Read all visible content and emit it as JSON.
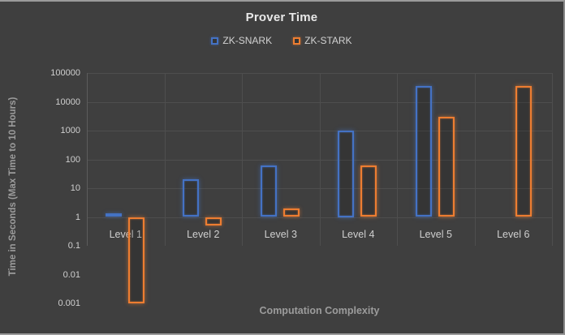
{
  "chart_data": {
    "type": "bar",
    "title": "Prover Time",
    "xlabel": "Computation Complexity",
    "ylabel": "Time in Seconds (Max Time to 10 Hours)",
    "scale": "log",
    "ylim": [
      0.001,
      100000
    ],
    "baseline": 1,
    "grid": true,
    "legend_position": "top",
    "y_ticks": [
      "100000",
      "10000",
      "1000",
      "100",
      "10",
      "1",
      "0.1",
      "0.01",
      "0.001"
    ],
    "categories": [
      "Level 1",
      "Level 2",
      "Level 3",
      "Level 4",
      "Level 5",
      "Level 6"
    ],
    "series": [
      {
        "name": "ZK-SNARK",
        "color": "#4472c4",
        "glow": "rgba(68,114,196,0.65)",
        "values": [
          1.3,
          20,
          60,
          1000,
          36000,
          null
        ]
      },
      {
        "name": "ZK-STARK",
        "color": "#ed7d31",
        "glow": "rgba(237,125,49,0.65)",
        "values": [
          0.001,
          0.5,
          2,
          60,
          3000,
          36000
        ]
      }
    ],
    "colors": {
      "background": "#3f3f3f",
      "gridline": "#4e4e4e",
      "title_text": "#e8e8e8",
      "axis_title_text": "#9c9c9c",
      "tick_text": "#cfcfcf",
      "frame_border": "#9a9a9a"
    }
  }
}
